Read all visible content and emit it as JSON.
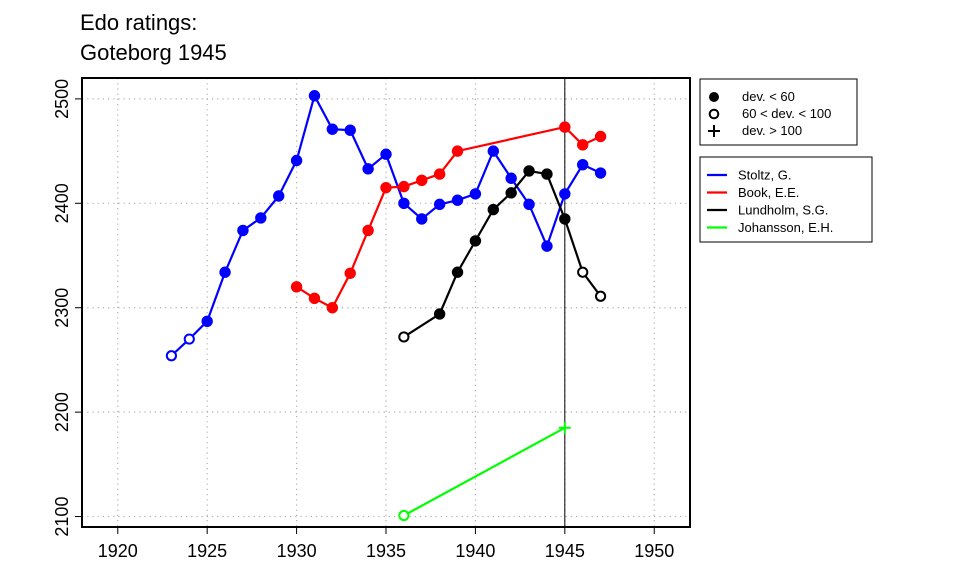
{
  "chart_data": {
    "type": "line",
    "title": "Edo ratings:\nGoteborg 1945",
    "xlabel": "",
    "ylabel": "",
    "xlim": [
      1918,
      1952
    ],
    "ylim": [
      2090,
      2520
    ],
    "x_ticks": [
      1920,
      1925,
      1930,
      1935,
      1940,
      1945,
      1950
    ],
    "y_ticks": [
      2100,
      2200,
      2300,
      2400,
      2500
    ],
    "x_tick_labels": [
      "1920",
      "1925",
      "1930",
      "1935",
      "1940",
      "1945",
      "1950"
    ],
    "y_tick_labels": [
      "2100",
      "2200",
      "2300",
      "2400",
      "2500"
    ],
    "grid": true,
    "reference_line_x": 1945,
    "marker_legend": [
      {
        "marker": "filled",
        "label": "dev. < 60"
      },
      {
        "marker": "open",
        "label": "60 < dev. < 100"
      },
      {
        "marker": "plus",
        "label": "dev. > 100"
      }
    ],
    "series": [
      {
        "name": "Stoltz, G.",
        "color": "#0000ff",
        "points": [
          {
            "x": 1923,
            "y": 2254,
            "m": "open"
          },
          {
            "x": 1924,
            "y": 2270,
            "m": "open"
          },
          {
            "x": 1925,
            "y": 2287,
            "m": "filled"
          },
          {
            "x": 1926,
            "y": 2334,
            "m": "filled"
          },
          {
            "x": 1927,
            "y": 2374,
            "m": "filled"
          },
          {
            "x": 1928,
            "y": 2386,
            "m": "filled"
          },
          {
            "x": 1929,
            "y": 2407,
            "m": "filled"
          },
          {
            "x": 1930,
            "y": 2441,
            "m": "filled"
          },
          {
            "x": 1931,
            "y": 2503,
            "m": "filled"
          },
          {
            "x": 1932,
            "y": 2471,
            "m": "filled"
          },
          {
            "x": 1933,
            "y": 2470,
            "m": "filled"
          },
          {
            "x": 1934,
            "y": 2433,
            "m": "filled"
          },
          {
            "x": 1935,
            "y": 2447,
            "m": "filled"
          },
          {
            "x": 1936,
            "y": 2400,
            "m": "filled"
          },
          {
            "x": 1937,
            "y": 2385,
            "m": "filled"
          },
          {
            "x": 1938,
            "y": 2399,
            "m": "filled"
          },
          {
            "x": 1939,
            "y": 2403,
            "m": "filled"
          },
          {
            "x": 1940,
            "y": 2409,
            "m": "filled"
          },
          {
            "x": 1941,
            "y": 2450,
            "m": "filled"
          },
          {
            "x": 1942,
            "y": 2424,
            "m": "filled"
          },
          {
            "x": 1943,
            "y": 2399,
            "m": "filled"
          },
          {
            "x": 1944,
            "y": 2359,
            "m": "filled"
          },
          {
            "x": 1945,
            "y": 2409,
            "m": "filled"
          },
          {
            "x": 1946,
            "y": 2437,
            "m": "filled"
          },
          {
            "x": 1947,
            "y": 2429,
            "m": "filled"
          }
        ]
      },
      {
        "name": "Book, E.E.",
        "color": "#ff0000",
        "points": [
          {
            "x": 1930,
            "y": 2320,
            "m": "filled"
          },
          {
            "x": 1931,
            "y": 2309,
            "m": "filled"
          },
          {
            "x": 1932,
            "y": 2300,
            "m": "filled"
          },
          {
            "x": 1933,
            "y": 2333,
            "m": "filled"
          },
          {
            "x": 1934,
            "y": 2374,
            "m": "filled"
          },
          {
            "x": 1935,
            "y": 2415,
            "m": "filled"
          },
          {
            "x": 1936,
            "y": 2416,
            "m": "filled"
          },
          {
            "x": 1937,
            "y": 2422,
            "m": "filled"
          },
          {
            "x": 1938,
            "y": 2428,
            "m": "filled"
          },
          {
            "x": 1939,
            "y": 2450,
            "m": "filled"
          },
          {
            "x": 1945,
            "y": 2473,
            "m": "filled"
          },
          {
            "x": 1946,
            "y": 2456,
            "m": "filled"
          },
          {
            "x": 1947,
            "y": 2464,
            "m": "filled"
          }
        ]
      },
      {
        "name": "Lundholm, S.G.",
        "color": "#000000",
        "points": [
          {
            "x": 1936,
            "y": 2272,
            "m": "open"
          },
          {
            "x": 1938,
            "y": 2294,
            "m": "filled"
          },
          {
            "x": 1939,
            "y": 2334,
            "m": "filled"
          },
          {
            "x": 1940,
            "y": 2364,
            "m": "filled"
          },
          {
            "x": 1941,
            "y": 2394,
            "m": "filled"
          },
          {
            "x": 1942,
            "y": 2410,
            "m": "filled"
          },
          {
            "x": 1943,
            "y": 2431,
            "m": "filled"
          },
          {
            "x": 1944,
            "y": 2428,
            "m": "filled"
          },
          {
            "x": 1945,
            "y": 2385,
            "m": "filled"
          },
          {
            "x": 1946,
            "y": 2334,
            "m": "open"
          },
          {
            "x": 1947,
            "y": 2311,
            "m": "open"
          }
        ]
      },
      {
        "name": "Johansson, E.H.",
        "color": "#00ff00",
        "points": [
          {
            "x": 1936,
            "y": 2101,
            "m": "open"
          },
          {
            "x": 1945,
            "y": 2185,
            "m": "plus"
          }
        ]
      }
    ]
  }
}
